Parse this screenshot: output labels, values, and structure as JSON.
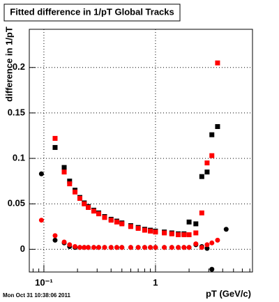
{
  "chart_data": {
    "type": "scatter",
    "title": "Fitted difference in 1/pT  Global Tracks",
    "y_label": "difference in 1/pT",
    "x_label": "pT (GeV/c)",
    "footer": "Mon Oct 31 10:38:06 2011",
    "log_x": true,
    "grid": true,
    "xlim": [
      0.074,
      7.4
    ],
    "ylim": [
      -0.025,
      0.242
    ],
    "xticks": [
      {
        "value": 0.1,
        "label": "10⁻¹"
      },
      1
    ],
    "yticks": [
      0,
      0.05,
      0.1,
      0.15,
      0.2
    ],
    "x": [
      0.095,
      0.126,
      0.152,
      0.17,
      0.19,
      0.21,
      0.23,
      0.25,
      0.28,
      0.31,
      0.35,
      0.4,
      0.45,
      0.5,
      0.6,
      0.7,
      0.8,
      0.9,
      1.0,
      1.2,
      1.4,
      1.6,
      1.8,
      2.0,
      2.3,
      2.6,
      2.9,
      3.2,
      3.6,
      4.3
    ],
    "series": [
      {
        "marker": "square",
        "color": "#000000",
        "values": [
          null,
          0.112,
          0.09,
          0.075,
          0.065,
          0.057,
          0.051,
          0.047,
          0.043,
          0.04,
          0.036,
          0.033,
          0.031,
          0.029,
          0.026,
          0.024,
          0.022,
          0.021,
          0.02,
          0.019,
          0.018,
          0.017,
          0.017,
          0.03,
          0.028,
          0.08,
          0.085,
          0.126,
          0.135,
          null
        ]
      },
      {
        "marker": "square",
        "color": "#ff0000",
        "values": [
          null,
          0.122,
          0.085,
          0.072,
          0.063,
          0.056,
          0.05,
          0.046,
          0.042,
          0.039,
          0.035,
          0.032,
          0.03,
          0.028,
          0.025,
          0.023,
          0.021,
          0.02,
          0.019,
          0.018,
          0.017,
          0.016,
          0.016,
          0.016,
          0.018,
          0.04,
          0.095,
          0.103,
          0.205,
          null
        ]
      },
      {
        "marker": "circle",
        "color": "#000000",
        "values": [
          0.083,
          0.01,
          0.007,
          0.003,
          0.002,
          0.002,
          0.002,
          0.002,
          0.002,
          0.002,
          0.002,
          0.002,
          0.002,
          0.002,
          0.002,
          0.002,
          0.002,
          0.002,
          0.002,
          0.002,
          0.002,
          0.002,
          0.002,
          0.002,
          0.005,
          0.003,
          0.001,
          -0.022,
          null,
          0.022
        ]
      },
      {
        "marker": "circle",
        "color": "#ff0000",
        "values": [
          0.032,
          0.015,
          0.008,
          0.005,
          0.003,
          0.002,
          0.002,
          0.002,
          0.002,
          0.002,
          0.002,
          0.002,
          0.002,
          0.002,
          0.002,
          0.002,
          0.002,
          0.002,
          0.002,
          0.002,
          0.002,
          0.002,
          0.002,
          0.002,
          0.006,
          0.002,
          0.005,
          0.007,
          0.01,
          null
        ]
      }
    ]
  }
}
